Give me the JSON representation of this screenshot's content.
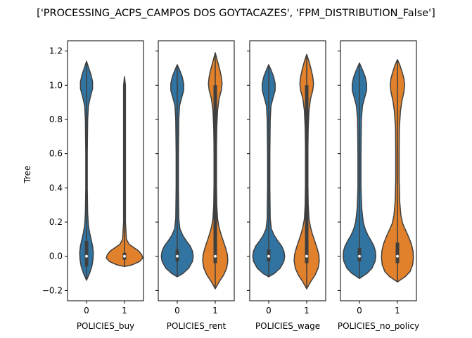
{
  "chart_data": {
    "type": "violin",
    "title": "['PROCESSING_ACPS_CAMPOS DOS GOYTACAZES', 'FPM_DISTRIBUTION_False']",
    "ylabel": "Tree",
    "ylim": [
      -0.26,
      1.26
    ],
    "yticks": [
      -0.2,
      0.0,
      0.2,
      0.4,
      0.6,
      0.8,
      1.0,
      1.2
    ],
    "ytick_labels": [
      "−0.2",
      "0.0",
      "0.2",
      "0.4",
      "0.6",
      "0.8",
      "1.0",
      "1.2"
    ],
    "xlim": [
      -0.5,
      1.5
    ],
    "categories": [
      "0",
      "1"
    ],
    "colors": {
      "0": "#3274a1",
      "1": "#e1812c"
    },
    "line_color": "#3f3f3f",
    "sharey": true,
    "panels": [
      {
        "xlabel": "POLICIES_buy",
        "violins": [
          {
            "category": "0",
            "median": 0.0,
            "q1": -0.06,
            "q3": 0.09,
            "max": 1.14,
            "min": -0.14,
            "profile": [
              [
                -0.14,
                0.0
              ],
              [
                -0.1,
                0.08
              ],
              [
                -0.06,
                0.14
              ],
              [
                -0.02,
                0.17
              ],
              [
                0.02,
                0.18
              ],
              [
                0.06,
                0.16
              ],
              [
                0.1,
                0.12
              ],
              [
                0.14,
                0.08
              ],
              [
                0.18,
                0.05
              ],
              [
                0.25,
                0.03
              ],
              [
                0.4,
                0.02
              ],
              [
                0.6,
                0.02
              ],
              [
                0.8,
                0.03
              ],
              [
                0.88,
                0.05
              ],
              [
                0.93,
                0.1
              ],
              [
                0.98,
                0.16
              ],
              [
                1.02,
                0.16
              ],
              [
                1.06,
                0.12
              ],
              [
                1.1,
                0.06
              ],
              [
                1.14,
                0.0
              ]
            ]
          },
          {
            "category": "1",
            "median": 0.0,
            "q1": -0.02,
            "q3": 0.02,
            "max": 1.05,
            "min": -0.06,
            "profile": [
              [
                -0.06,
                0.0
              ],
              [
                -0.05,
                0.2
              ],
              [
                -0.03,
                0.4
              ],
              [
                -0.01,
                0.48
              ],
              [
                0.01,
                0.45
              ],
              [
                0.03,
                0.38
              ],
              [
                0.05,
                0.25
              ],
              [
                0.07,
                0.12
              ],
              [
                0.1,
                0.05
              ],
              [
                0.2,
                0.025
              ],
              [
                0.5,
                0.025
              ],
              [
                0.8,
                0.025
              ],
              [
                1.0,
                0.025
              ],
              [
                1.05,
                0.0
              ]
            ]
          }
        ]
      },
      {
        "xlabel": "POLICIES_rent",
        "violins": [
          {
            "category": "0",
            "median": 0.0,
            "q1": -0.03,
            "q3": 0.04,
            "max": 1.12,
            "min": -0.12,
            "profile": [
              [
                -0.12,
                0.0
              ],
              [
                -0.1,
                0.15
              ],
              [
                -0.07,
                0.3
              ],
              [
                -0.03,
                0.4
              ],
              [
                0.0,
                0.42
              ],
              [
                0.03,
                0.4
              ],
              [
                0.06,
                0.34
              ],
              [
                0.09,
                0.24
              ],
              [
                0.12,
                0.15
              ],
              [
                0.16,
                0.07
              ],
              [
                0.22,
                0.04
              ],
              [
                0.4,
                0.03
              ],
              [
                0.6,
                0.03
              ],
              [
                0.8,
                0.04
              ],
              [
                0.88,
                0.06
              ],
              [
                0.93,
                0.12
              ],
              [
                0.97,
                0.17
              ],
              [
                1.01,
                0.17
              ],
              [
                1.05,
                0.13
              ],
              [
                1.09,
                0.06
              ],
              [
                1.12,
                0.0
              ]
            ]
          },
          {
            "category": "1",
            "median": 0.0,
            "q1": -0.04,
            "q3": 1.0,
            "max": 1.19,
            "min": -0.19,
            "profile": [
              [
                -0.19,
                0.0
              ],
              [
                -0.15,
                0.1
              ],
              [
                -0.11,
                0.22
              ],
              [
                -0.07,
                0.3
              ],
              [
                -0.03,
                0.33
              ],
              [
                0.01,
                0.32
              ],
              [
                0.05,
                0.27
              ],
              [
                0.09,
                0.21
              ],
              [
                0.13,
                0.15
              ],
              [
                0.17,
                0.1
              ],
              [
                0.22,
                0.06
              ],
              [
                0.3,
                0.04
              ],
              [
                0.45,
                0.03
              ],
              [
                0.6,
                0.03
              ],
              [
                0.75,
                0.04
              ],
              [
                0.85,
                0.06
              ],
              [
                0.92,
                0.1
              ],
              [
                0.97,
                0.16
              ],
              [
                1.01,
                0.18
              ],
              [
                1.05,
                0.16
              ],
              [
                1.09,
                0.12
              ],
              [
                1.14,
                0.06
              ],
              [
                1.19,
                0.0
              ]
            ]
          }
        ]
      },
      {
        "xlabel": "POLICIES_wage",
        "violins": [
          {
            "category": "0",
            "median": 0.0,
            "q1": -0.03,
            "q3": 0.04,
            "max": 1.12,
            "min": -0.12,
            "profile": [
              [
                -0.12,
                0.0
              ],
              [
                -0.1,
                0.15
              ],
              [
                -0.07,
                0.3
              ],
              [
                -0.03,
                0.4
              ],
              [
                0.0,
                0.42
              ],
              [
                0.03,
                0.4
              ],
              [
                0.06,
                0.34
              ],
              [
                0.09,
                0.24
              ],
              [
                0.12,
                0.15
              ],
              [
                0.16,
                0.07
              ],
              [
                0.22,
                0.04
              ],
              [
                0.4,
                0.03
              ],
              [
                0.6,
                0.03
              ],
              [
                0.8,
                0.04
              ],
              [
                0.88,
                0.06
              ],
              [
                0.93,
                0.12
              ],
              [
                0.97,
                0.17
              ],
              [
                1.01,
                0.17
              ],
              [
                1.05,
                0.13
              ],
              [
                1.09,
                0.06
              ],
              [
                1.12,
                0.0
              ]
            ]
          },
          {
            "category": "1",
            "median": 0.0,
            "q1": -0.04,
            "q3": 1.0,
            "max": 1.18,
            "min": -0.19,
            "profile": [
              [
                -0.19,
                0.0
              ],
              [
                -0.15,
                0.1
              ],
              [
                -0.11,
                0.22
              ],
              [
                -0.07,
                0.3
              ],
              [
                -0.03,
                0.33
              ],
              [
                0.01,
                0.32
              ],
              [
                0.05,
                0.27
              ],
              [
                0.09,
                0.21
              ],
              [
                0.13,
                0.15
              ],
              [
                0.17,
                0.1
              ],
              [
                0.22,
                0.06
              ],
              [
                0.3,
                0.04
              ],
              [
                0.45,
                0.03
              ],
              [
                0.6,
                0.03
              ],
              [
                0.75,
                0.04
              ],
              [
                0.85,
                0.06
              ],
              [
                0.92,
                0.1
              ],
              [
                0.97,
                0.16
              ],
              [
                1.01,
                0.18
              ],
              [
                1.05,
                0.16
              ],
              [
                1.09,
                0.12
              ],
              [
                1.14,
                0.06
              ],
              [
                1.18,
                0.0
              ]
            ]
          }
        ]
      },
      {
        "xlabel": "POLICIES_no_policy",
        "violins": [
          {
            "category": "0",
            "median": 0.0,
            "q1": -0.03,
            "q3": 0.05,
            "max": 1.13,
            "min": -0.13,
            "profile": [
              [
                -0.13,
                0.0
              ],
              [
                -0.1,
                0.2
              ],
              [
                -0.07,
                0.33
              ],
              [
                -0.03,
                0.41
              ],
              [
                0.0,
                0.43
              ],
              [
                0.03,
                0.42
              ],
              [
                0.06,
                0.38
              ],
              [
                0.09,
                0.31
              ],
              [
                0.12,
                0.23
              ],
              [
                0.16,
                0.15
              ],
              [
                0.2,
                0.1
              ],
              [
                0.28,
                0.06
              ],
              [
                0.4,
                0.04
              ],
              [
                0.6,
                0.04
              ],
              [
                0.8,
                0.05
              ],
              [
                0.88,
                0.08
              ],
              [
                0.93,
                0.14
              ],
              [
                0.97,
                0.19
              ],
              [
                1.01,
                0.19
              ],
              [
                1.05,
                0.15
              ],
              [
                1.09,
                0.08
              ],
              [
                1.13,
                0.0
              ]
            ]
          },
          {
            "category": "1",
            "median": 0.0,
            "q1": -0.04,
            "q3": 0.08,
            "max": 1.15,
            "min": -0.15,
            "profile": [
              [
                -0.15,
                0.0
              ],
              [
                -0.12,
                0.2
              ],
              [
                -0.09,
                0.33
              ],
              [
                -0.05,
                0.4
              ],
              [
                -0.01,
                0.42
              ],
              [
                0.03,
                0.41
              ],
              [
                0.07,
                0.37
              ],
              [
                0.11,
                0.3
              ],
              [
                0.15,
                0.22
              ],
              [
                0.19,
                0.14
              ],
              [
                0.24,
                0.09
              ],
              [
                0.32,
                0.06
              ],
              [
                0.45,
                0.045
              ],
              [
                0.6,
                0.045
              ],
              [
                0.75,
                0.05
              ],
              [
                0.85,
                0.08
              ],
              [
                0.91,
                0.12
              ],
              [
                0.96,
                0.17
              ],
              [
                1.0,
                0.19
              ],
              [
                1.04,
                0.17
              ],
              [
                1.08,
                0.12
              ],
              [
                1.12,
                0.06
              ],
              [
                1.15,
                0.0
              ]
            ]
          }
        ]
      }
    ]
  }
}
